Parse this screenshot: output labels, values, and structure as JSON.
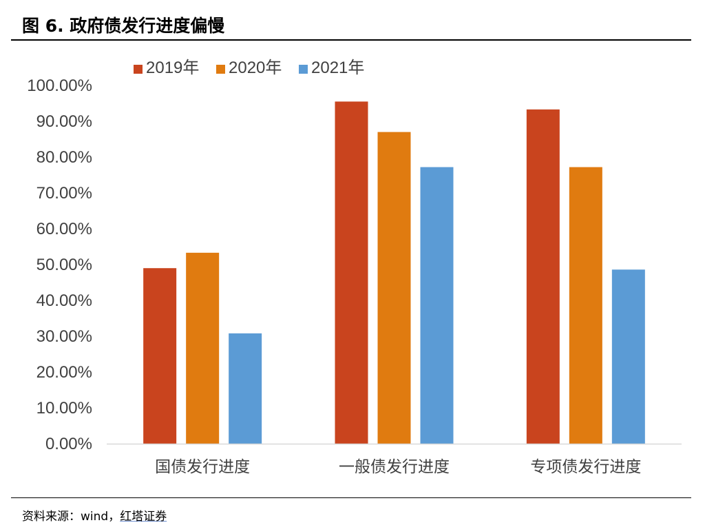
{
  "figure": {
    "title": "图 6. 政府债发行进度偏慢",
    "source_prefix": "资料来源：wind，",
    "source_org": "红塔证券"
  },
  "chart_data": {
    "type": "bar",
    "title": "",
    "xlabel": "",
    "ylabel": "",
    "categories": [
      "国债发行进度",
      "一般债发行进度",
      "专项债发行进度"
    ],
    "series": [
      {
        "name": "2019年",
        "color": "#c9441e",
        "values": [
          0.49,
          0.955,
          0.933
        ]
      },
      {
        "name": "2020年",
        "color": "#e07b10",
        "values": [
          0.533,
          0.87,
          0.772
        ]
      },
      {
        "name": "2021年",
        "color": "#5b9bd5",
        "values": [
          0.308,
          0.772,
          0.486
        ]
      }
    ],
    "ylim": [
      0,
      1
    ],
    "yticks": [
      0,
      0.1,
      0.2,
      0.3,
      0.4,
      0.5,
      0.6,
      0.7,
      0.8,
      0.9,
      1.0
    ],
    "ytick_labels": [
      "0.00%",
      "10.00%",
      "20.00%",
      "30.00%",
      "40.00%",
      "50.00%",
      "60.00%",
      "70.00%",
      "80.00%",
      "90.00%",
      "100.00%"
    ],
    "grid": false,
    "legend_position": "top"
  }
}
